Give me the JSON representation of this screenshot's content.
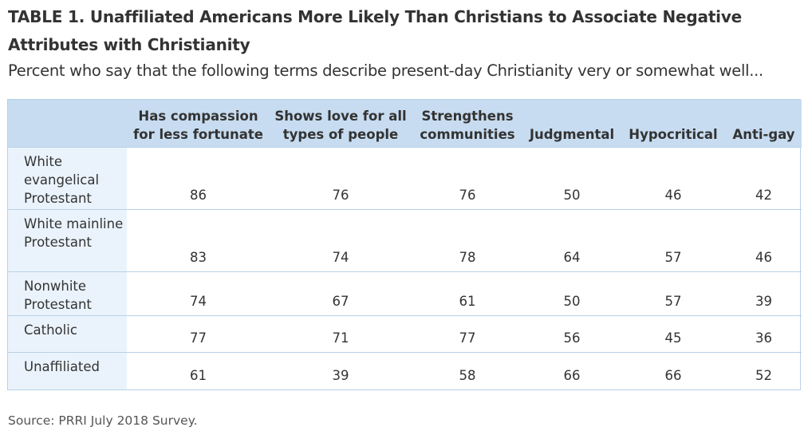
{
  "title": "TABLE 1. Unaffiliated Americans More Likely Than Christians to Associate Negative Attributes with Christianity",
  "subtitle": "Percent who say that the following terms describe present-day Christianity very or somewhat well...",
  "source": "Source: PRRI July 2018 Survey.",
  "colors": {
    "header_bg": "#c7dcf0",
    "row_label_bg": "#eaf3fc",
    "border": "#b9d0e6"
  },
  "chart_data": {
    "type": "table",
    "columns": [
      "Has compassion for less fortunate",
      "Shows love for all types of people",
      "Strengthens communities",
      "Judgmental",
      "Hypocritical",
      "Anti-gay"
    ],
    "rows": [
      {
        "label": "White evangelical Protestant",
        "values": [
          86,
          76,
          76,
          50,
          46,
          42
        ]
      },
      {
        "label": "White mainline Protestant",
        "values": [
          83,
          74,
          78,
          64,
          57,
          46
        ]
      },
      {
        "label": "Nonwhite Protestant",
        "values": [
          74,
          67,
          61,
          50,
          57,
          39
        ]
      },
      {
        "label": "Catholic",
        "values": [
          77,
          71,
          77,
          56,
          45,
          36
        ]
      },
      {
        "label": "Unaffiliated",
        "values": [
          61,
          39,
          58,
          66,
          66,
          52
        ]
      }
    ]
  }
}
